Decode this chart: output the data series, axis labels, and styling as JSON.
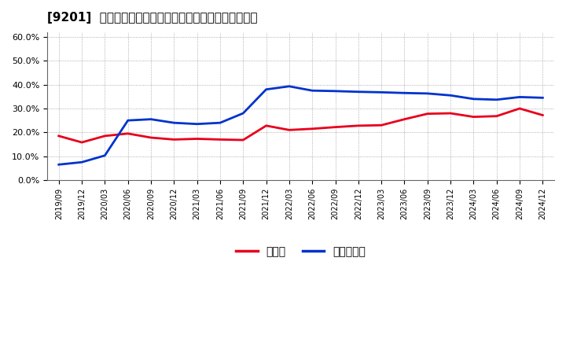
{
  "title": "[9201]  現顔金、有利子負債の総資産に対する比率の推移",
  "x_labels": [
    "2019/09",
    "2019/12",
    "2020/03",
    "2020/06",
    "2020/09",
    "2020/12",
    "2021/03",
    "2021/06",
    "2021/09",
    "2021/12",
    "2022/03",
    "2022/06",
    "2022/09",
    "2022/12",
    "2023/03",
    "2023/06",
    "2023/09",
    "2023/12",
    "2024/03",
    "2024/06",
    "2024/09",
    "2024/12"
  ],
  "cash": [
    0.185,
    0.158,
    0.185,
    0.195,
    0.178,
    0.17,
    0.173,
    0.17,
    0.168,
    0.228,
    0.21,
    0.215,
    0.222,
    0.228,
    0.23,
    0.255,
    0.278,
    0.28,
    0.265,
    0.268,
    0.3,
    0.272
  ],
  "debt": [
    0.065,
    0.075,
    0.103,
    0.25,
    0.255,
    0.24,
    0.235,
    0.24,
    0.28,
    0.38,
    0.393,
    0.375,
    0.373,
    0.37,
    0.368,
    0.365,
    0.363,
    0.355,
    0.34,
    0.337,
    0.348,
    0.345
  ],
  "cash_color": "#e8001c",
  "debt_color": "#0033cc",
  "background_color": "#ffffff",
  "plot_bg_color": "#ffffff",
  "grid_color": "#999999",
  "ylim": [
    0.0,
    0.62
  ],
  "yticks": [
    0.0,
    0.1,
    0.2,
    0.3,
    0.4,
    0.5,
    0.6
  ],
  "legend_cash": "現顔金",
  "legend_debt": "有利子負債",
  "line_width": 2.0,
  "title_fontsize": 11,
  "tick_fontsize": 8,
  "legend_fontsize": 10
}
